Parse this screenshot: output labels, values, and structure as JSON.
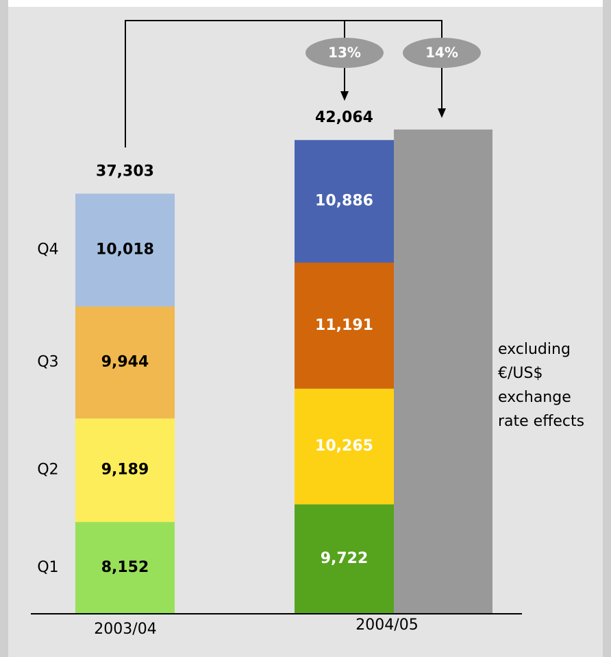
{
  "chart_data": {
    "type": "bar",
    "stacked": true,
    "categories": [
      "2003/04",
      "2004/05"
    ],
    "series": [
      {
        "name": "Q1",
        "colors": [
          "#98e05a",
          "#56a31e"
        ],
        "values": [
          8152,
          9722
        ],
        "value_labels": [
          "8,152",
          "9,722"
        ]
      },
      {
        "name": "Q2",
        "colors": [
          "#fded5a",
          "#fdd214"
        ],
        "values": [
          9189,
          10265
        ],
        "value_labels": [
          "9,189",
          "10,265"
        ]
      },
      {
        "name": "Q3",
        "colors": [
          "#f0b84e",
          "#d1660a"
        ],
        "values": [
          9944,
          11191
        ],
        "value_labels": [
          "9,944",
          "11,191"
        ]
      },
      {
        "name": "Q4",
        "colors": [
          "#a6bedf",
          "#4963b0"
        ],
        "values": [
          10018,
          10886
        ],
        "value_labels": [
          "10,018",
          "10,886"
        ]
      }
    ],
    "label_colors": [
      "#000000",
      "#ffffff"
    ],
    "totals": {
      "values": [
        37303,
        42064
      ],
      "value_labels": [
        "37,303",
        "42,064"
      ]
    },
    "adjusted": {
      "value": 43000,
      "color": "#999999"
    },
    "growth": [
      {
        "value": 13,
        "label": "13%"
      },
      {
        "value": 14,
        "label": "14%"
      }
    ],
    "note_lines": [
      "excluding",
      "€/US$",
      "exchange",
      "rate effects"
    ],
    "ylim": [
      0,
      45000
    ]
  }
}
